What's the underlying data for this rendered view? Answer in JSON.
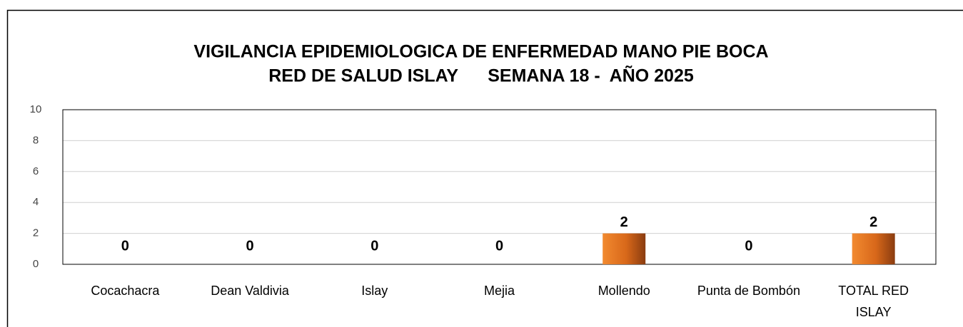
{
  "chart_data": {
    "type": "bar",
    "title": [
      "VIGILANCIA EPIDEMIOLOGICA DE ENFERMEDAD MANO PIE BOCA",
      "RED DE SALUD ISLAY      SEMANA 18 -  AÑO 2025"
    ],
    "categories": [
      "Cocachacra",
      "Dean Valdivia",
      "Islay",
      "Mejia",
      "Mollendo",
      "Punta de Bombón",
      "TOTAL RED ISLAY"
    ],
    "values": [
      0,
      0,
      0,
      0,
      2,
      0,
      2
    ],
    "color": "#e87722",
    "ylim": [
      0,
      10
    ],
    "yticks": [
      0,
      2,
      4,
      6,
      8,
      10
    ],
    "grid": true
  }
}
